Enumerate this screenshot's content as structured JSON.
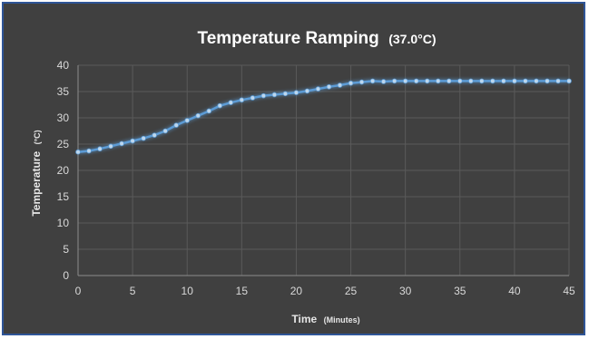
{
  "chart_data": {
    "type": "line",
    "title": "Temperature Ramping",
    "title_suffix": "(37.0°C)",
    "xlabel": "Time",
    "xlabel_unit": "(Minutes)",
    "ylabel": "Temperature",
    "ylabel_unit": "(°C)",
    "xlim": [
      0,
      45
    ],
    "ylim": [
      0,
      40
    ],
    "xticks": [
      0,
      5,
      10,
      15,
      20,
      25,
      30,
      35,
      40,
      45
    ],
    "yticks": [
      0,
      5,
      10,
      15,
      20,
      25,
      30,
      35,
      40
    ],
    "grid": true,
    "legend": "none",
    "colors": {
      "background": "#404040",
      "line": "#5b9bd5",
      "grid": "#5a5a5a",
      "border": "#2f5597"
    },
    "series": [
      {
        "x": [
          0,
          1,
          2,
          3,
          4,
          5,
          6,
          7,
          8,
          9,
          10,
          11,
          12,
          13,
          14,
          15,
          16,
          17,
          18,
          19,
          20,
          21,
          22,
          23,
          24,
          25,
          26,
          27,
          28,
          29,
          30,
          31,
          32,
          33,
          34,
          35,
          36,
          37,
          38,
          39,
          40,
          41,
          42,
          43,
          44,
          45
        ],
        "values": [
          23.5,
          23.7,
          24.1,
          24.6,
          25.1,
          25.6,
          26.1,
          26.7,
          27.5,
          28.6,
          29.5,
          30.4,
          31.3,
          32.3,
          32.9,
          33.4,
          33.8,
          34.2,
          34.4,
          34.6,
          34.8,
          35.1,
          35.5,
          35.9,
          36.2,
          36.6,
          36.8,
          37.0,
          36.9,
          37.0,
          37.0,
          37.0,
          37.0,
          37.0,
          37.0,
          37.0,
          37.0,
          37.0,
          37.0,
          37.0,
          37.0,
          37.0,
          37.0,
          37.0,
          37.0,
          37.0
        ]
      }
    ]
  }
}
